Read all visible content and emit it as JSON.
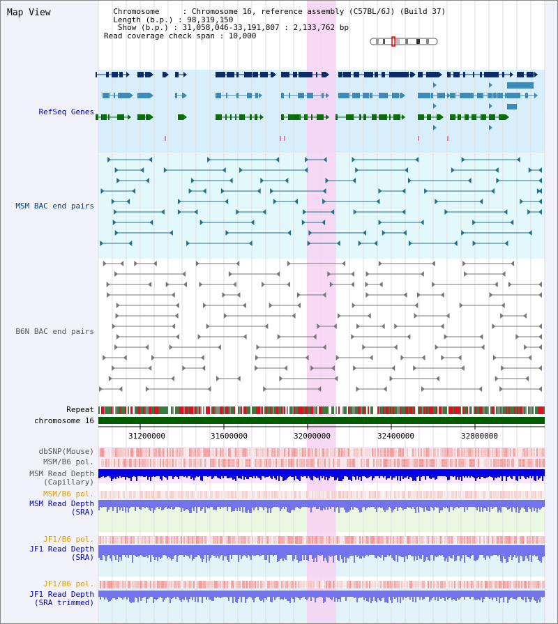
{
  "header": {
    "title": "Map View",
    "info_lines": [
      "  Chromosome     : Chromosome 16, reference assembly (C57BL/6J) (Build 37)",
      "  Length (b.p.) : 98,319,150",
      "   Show (b.p.) : 31,058,046-33,191,807 : 2,133,762 bp",
      "Read coverage check span : 10,000"
    ]
  },
  "tracks": {
    "refseq": "RefSeq Genes",
    "msm_bac": "MSM BAC end pairs",
    "b6n_bac": "B6N BAC end pairs",
    "repeat": "Repeat",
    "chromosome": "chromosome 16",
    "dbsnp": "dbSNP(Mouse)",
    "msm_b6_pol": "MSM/B6 pol.",
    "msm_depth_cap_1": "MSM Read Depth",
    "msm_depth_cap_2": "(Capillary)",
    "msm_b6_pol_2": "MSM/B6 pol.",
    "msm_depth_sra_1": "MSM Read Depth",
    "msm_depth_sra_2": "(SRA)",
    "jf1_b6_pol": "JF1/B6 pol.",
    "jf1_depth_sra_1": "JF1 Read Depth",
    "jf1_depth_sra_2": "(SRA)",
    "jf1_b6_pol_2": "JF1/B6 pol.",
    "jf1_depth_trim_1": "JF1 Read Depth",
    "jf1_depth_trim_2": "(SRA trimmed)"
  },
  "axis": {
    "ticks": [
      "31200000",
      "31600000",
      "32000000",
      "32400000",
      "32800000"
    ]
  },
  "colors": {
    "label_orange": "#e39b00",
    "label_blue": "#0000b0",
    "label_gray": "#555555",
    "highlight": "#f7d2f2",
    "refseq_bg": "#d9eefb",
    "msm_bg": "#e3f8fa",
    "depth_blue": "#0000e8",
    "depth_light": "#7373f0",
    "gene_dark": "#0b2c68",
    "gene_mid": "#3d8bb8",
    "gene_green": "#0b6e0b",
    "chrom_green": "#005c00"
  }
}
